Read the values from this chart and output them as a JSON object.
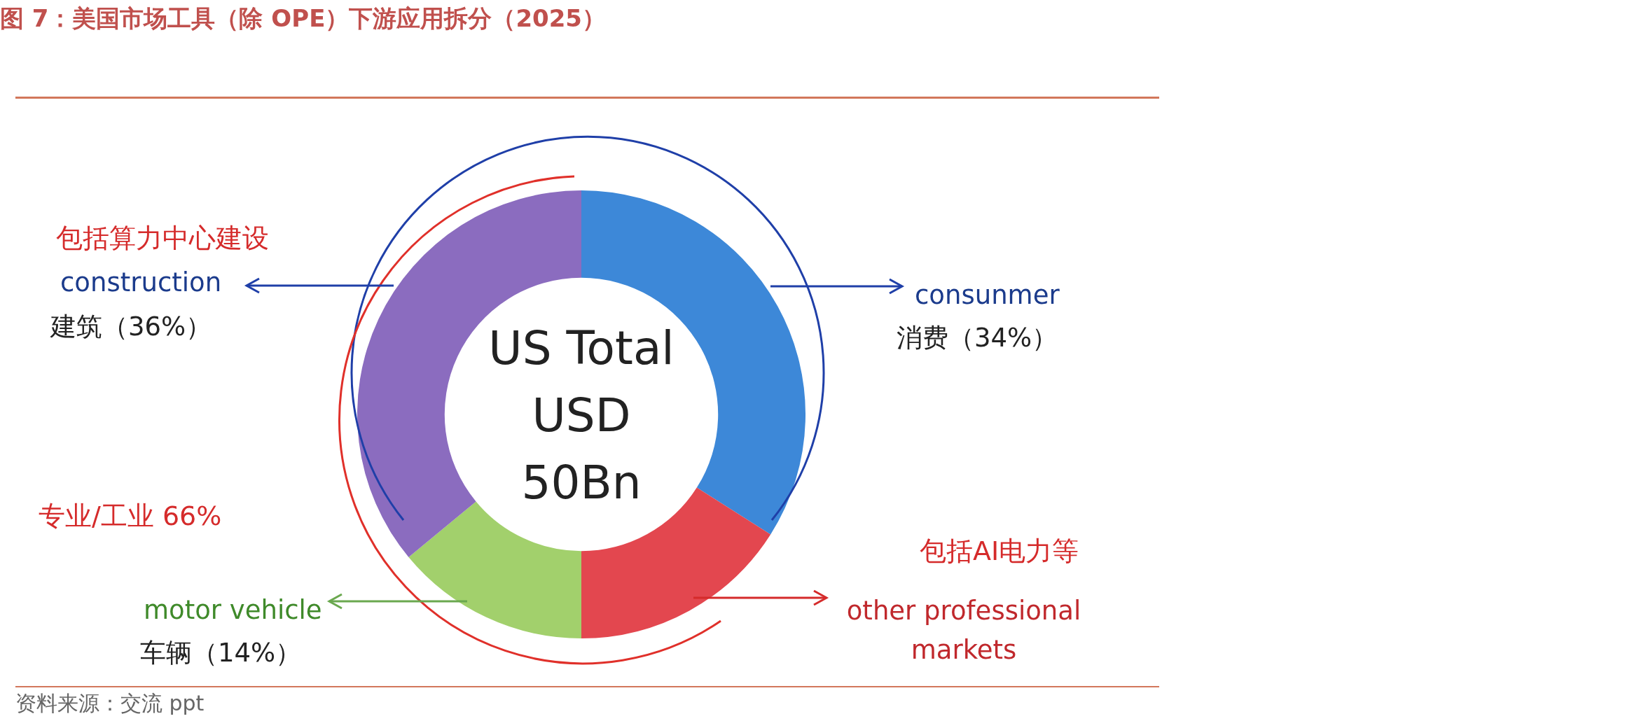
{
  "chart_data": {
    "type": "donut",
    "title": "图 7：美国市场工具（除 OPE）下游应用拆分（2025）",
    "categories": [
      "consunmer",
      "other professional markets",
      "motor vehicle",
      "construction"
    ],
    "values": [
      34,
      16,
      14,
      36
    ],
    "colors": [
      "#3d88d8",
      "#e3474f",
      "#a2d06c",
      "#8b6cbf"
    ],
    "value_labels": [
      "消费（34%）",
      null,
      "车辆（14%）",
      "建筑（36%）"
    ],
    "annotations": [
      "包括算力中心建设",
      "US Total\nUSD\n50Bn",
      "专业/工业 66%",
      "包括AI电力等",
      "资料来源：交流 ppt"
    ]
  }
}
